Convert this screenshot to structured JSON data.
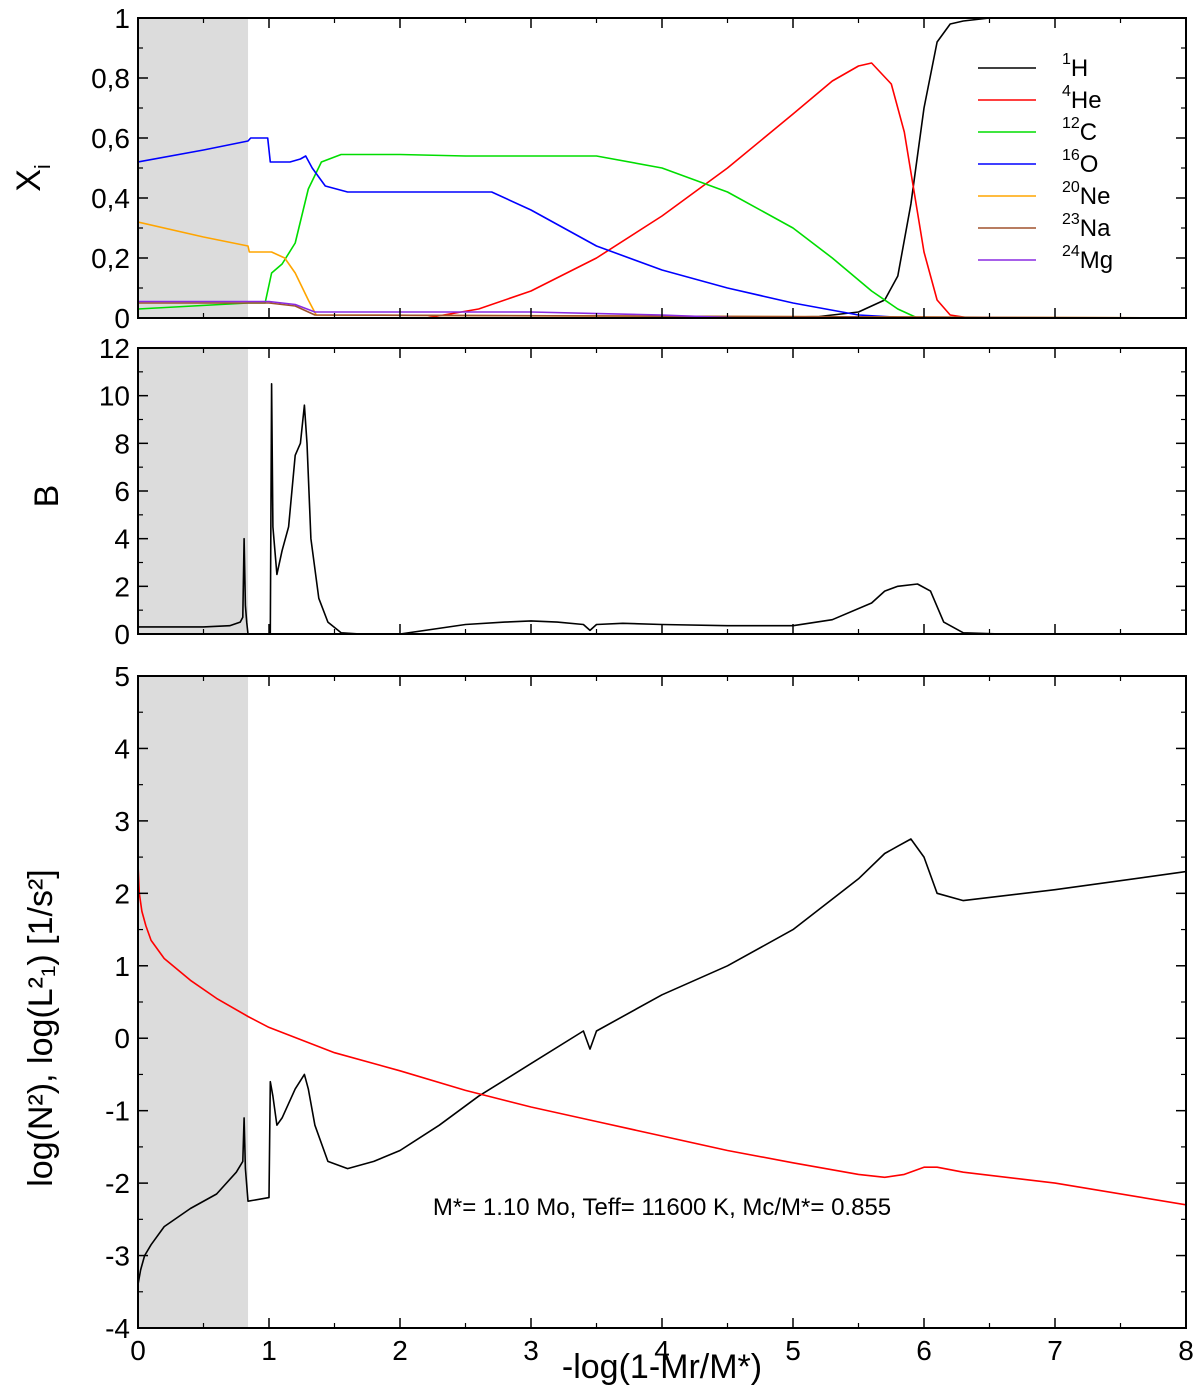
{
  "chart_data": [
    {
      "type": "line",
      "panel": "abundances",
      "ylabel": "X",
      "ylabel_sub": "i",
      "xlim": [
        0,
        8
      ],
      "ylim": [
        0,
        1
      ],
      "yticks": [
        {
          "value": 0,
          "label": "0"
        },
        {
          "value": 0.2,
          "label": "0,2"
        },
        {
          "value": 0.4,
          "label": "0,4"
        },
        {
          "value": 0.6,
          "label": "0,6"
        },
        {
          "value": 0.8,
          "label": "0,8"
        },
        {
          "value": 1,
          "label": "1"
        }
      ],
      "shaded_region": [
        0,
        0.84
      ],
      "legend_position": "top-right",
      "series": [
        {
          "name": "1H",
          "sup": "1",
          "label": "H",
          "color": "#000000",
          "x": [
            0,
            4.6,
            5.2,
            5.5,
            5.7,
            5.8,
            5.9,
            6.0,
            6.1,
            6.2,
            6.3,
            6.5,
            8
          ],
          "y": [
            0,
            0,
            0.005,
            0.02,
            0.06,
            0.14,
            0.38,
            0.7,
            0.92,
            0.98,
            0.99,
            1.0,
            1.0
          ]
        },
        {
          "name": "4He",
          "sup": "4",
          "label": "He",
          "color": "#ff0000",
          "x": [
            0,
            2.2,
            2.6,
            3.0,
            3.5,
            4.0,
            4.5,
            5.0,
            5.3,
            5.5,
            5.6,
            5.75,
            5.85,
            6.0,
            6.1,
            6.2,
            6.35,
            8
          ],
          "y": [
            0,
            0,
            0.03,
            0.09,
            0.2,
            0.34,
            0.5,
            0.68,
            0.79,
            0.84,
            0.85,
            0.78,
            0.62,
            0.22,
            0.06,
            0.01,
            0,
            0
          ]
        },
        {
          "name": "12C",
          "sup": "12",
          "label": "C",
          "color": "#00dd00",
          "x": [
            0,
            0.84,
            0.97,
            1.02,
            1.1,
            1.2,
            1.3,
            1.4,
            1.55,
            2.0,
            2.5,
            3.0,
            3.5,
            4.0,
            4.5,
            5.0,
            5.3,
            5.6,
            5.8,
            5.95,
            8
          ],
          "y": [
            0.03,
            0.05,
            0.05,
            0.15,
            0.18,
            0.25,
            0.43,
            0.52,
            0.545,
            0.545,
            0.54,
            0.54,
            0.54,
            0.5,
            0.42,
            0.3,
            0.2,
            0.09,
            0.03,
            0,
            0
          ]
        },
        {
          "name": "16O",
          "sup": "16",
          "label": "O",
          "color": "#0000ff",
          "x": [
            0,
            0.5,
            0.84,
            0.86,
            0.99,
            1.01,
            1.04,
            1.16,
            1.24,
            1.28,
            1.33,
            1.43,
            1.6,
            2.0,
            2.7,
            3.0,
            3.5,
            4.0,
            4.5,
            5.0,
            5.5,
            5.9,
            8
          ],
          "y": [
            0.52,
            0.56,
            0.59,
            0.6,
            0.6,
            0.52,
            0.52,
            0.52,
            0.53,
            0.54,
            0.5,
            0.44,
            0.42,
            0.42,
            0.42,
            0.36,
            0.24,
            0.16,
            0.1,
            0.05,
            0.01,
            0,
            0
          ]
        },
        {
          "name": "20Ne",
          "sup": "20",
          "label": "Ne",
          "color": "#ffa500",
          "x": [
            0,
            0.5,
            0.84,
            0.85,
            1.02,
            1.12,
            1.2,
            1.3,
            1.36,
            8
          ],
          "y": [
            0.32,
            0.27,
            0.24,
            0.22,
            0.22,
            0.2,
            0.15,
            0.06,
            0.01,
            0
          ]
        },
        {
          "name": "23Na",
          "sup": "23",
          "label": "Na",
          "color": "#a0522d",
          "x": [
            0,
            0.84,
            1.0,
            1.2,
            1.35,
            8
          ],
          "y": [
            0.05,
            0.05,
            0.05,
            0.04,
            0.01,
            0
          ]
        },
        {
          "name": "24Mg",
          "sup": "24",
          "label": "Mg",
          "color": "#8a2be2",
          "x": [
            0,
            0.84,
            1.0,
            1.2,
            1.35,
            2.0,
            3.0,
            4.0,
            4.6,
            8
          ],
          "y": [
            0.055,
            0.055,
            0.055,
            0.045,
            0.02,
            0.02,
            0.02,
            0.01,
            0,
            0
          ]
        }
      ]
    },
    {
      "type": "line",
      "panel": "ledoux",
      "ylabel": "B",
      "xlim": [
        0,
        8
      ],
      "ylim": [
        0,
        12
      ],
      "yticks": [
        {
          "value": 0,
          "label": "0"
        },
        {
          "value": 2,
          "label": "2"
        },
        {
          "value": 4,
          "label": "4"
        },
        {
          "value": 6,
          "label": "6"
        },
        {
          "value": 8,
          "label": "8"
        },
        {
          "value": 10,
          "label": "10"
        },
        {
          "value": 12,
          "label": "12"
        }
      ],
      "shaded_region": [
        0,
        0.84
      ],
      "series": [
        {
          "name": "B",
          "color": "#000000",
          "x": [
            0,
            0.1,
            0.3,
            0.5,
            0.7,
            0.78,
            0.8,
            0.81,
            0.82,
            0.83,
            0.84,
            0.86,
            1.01,
            1.02,
            1.03,
            1.06,
            1.1,
            1.15,
            1.2,
            1.24,
            1.27,
            1.29,
            1.32,
            1.38,
            1.45,
            1.55,
            1.7,
            2.0,
            2.5,
            2.8,
            3.0,
            3.2,
            3.4,
            3.45,
            3.5,
            3.7,
            4.0,
            4.5,
            5.0,
            5.3,
            5.6,
            5.7,
            5.8,
            5.95,
            6.05,
            6.15,
            6.3,
            6.6,
            8
          ],
          "y": [
            0.3,
            0.3,
            0.3,
            0.3,
            0.35,
            0.5,
            0.7,
            4.0,
            1.2,
            0.5,
            0.0,
            0.0,
            0.0,
            10.5,
            4.5,
            2.5,
            3.5,
            4.5,
            7.5,
            8.0,
            9.6,
            8.0,
            4.0,
            1.5,
            0.5,
            0.05,
            0.0,
            0.0,
            0.4,
            0.5,
            0.55,
            0.5,
            0.4,
            0.15,
            0.4,
            0.45,
            0.4,
            0.35,
            0.35,
            0.6,
            1.3,
            1.8,
            2.0,
            2.1,
            1.8,
            0.5,
            0.05,
            0.0,
            0.0
          ]
        }
      ]
    },
    {
      "type": "line",
      "panel": "frequencies",
      "ylabel": "log(N²), log(L²₁) [1/s²]",
      "xlabel": "-log(1-Mr/M*)",
      "xlim": [
        0,
        8
      ],
      "ylim": [
        -4,
        5
      ],
      "xticks": [
        {
          "value": 0,
          "label": "0"
        },
        {
          "value": 1,
          "label": "1"
        },
        {
          "value": 2,
          "label": "2"
        },
        {
          "value": 3,
          "label": "3"
        },
        {
          "value": 4,
          "label": "4"
        },
        {
          "value": 5,
          "label": "5"
        },
        {
          "value": 6,
          "label": "6"
        },
        {
          "value": 7,
          "label": "7"
        },
        {
          "value": 8,
          "label": "8"
        }
      ],
      "yticks": [
        {
          "value": -4,
          "label": "-4"
        },
        {
          "value": -3,
          "label": "-3"
        },
        {
          "value": -2,
          "label": "-2"
        },
        {
          "value": -1,
          "label": "-1"
        },
        {
          "value": 0,
          "label": "0"
        },
        {
          "value": 1,
          "label": "1"
        },
        {
          "value": 2,
          "label": "2"
        },
        {
          "value": 3,
          "label": "3"
        },
        {
          "value": 4,
          "label": "4"
        },
        {
          "value": 5,
          "label": "5"
        }
      ],
      "shaded_region": [
        0,
        0.84
      ],
      "annotation": "M*= 1.10 Mo, Teff= 11600 K, Mc/M*=  0.855",
      "series": [
        {
          "name": "log(N²)",
          "color": "#000000",
          "x": [
            0,
            0.02,
            0.05,
            0.1,
            0.2,
            0.4,
            0.6,
            0.75,
            0.8,
            0.81,
            0.82,
            0.84,
            1.0,
            1.01,
            1.03,
            1.06,
            1.1,
            1.2,
            1.27,
            1.3,
            1.35,
            1.45,
            1.6,
            1.8,
            2.0,
            2.3,
            2.6,
            3.0,
            3.4,
            3.45,
            3.5,
            4.0,
            4.5,
            5.0,
            5.5,
            5.7,
            5.8,
            5.9,
            6.0,
            6.1,
            6.3,
            7.0,
            8.0
          ],
          "y": [
            -3.4,
            -3.2,
            -3.0,
            -2.85,
            -2.6,
            -2.35,
            -2.15,
            -1.85,
            -1.7,
            -1.1,
            -1.8,
            -2.25,
            -2.2,
            -0.6,
            -0.8,
            -1.2,
            -1.1,
            -0.7,
            -0.5,
            -0.7,
            -1.2,
            -1.7,
            -1.8,
            -1.7,
            -1.55,
            -1.2,
            -0.8,
            -0.35,
            0.1,
            -0.15,
            0.1,
            0.6,
            1.0,
            1.5,
            2.2,
            2.55,
            2.65,
            2.75,
            2.5,
            2.0,
            1.9,
            2.05,
            2.3
          ]
        },
        {
          "name": "log(L²₁)",
          "color": "#ff0000",
          "x": [
            0,
            0.01,
            0.03,
            0.06,
            0.1,
            0.2,
            0.4,
            0.6,
            0.84,
            1.0,
            1.5,
            2.0,
            2.5,
            3.0,
            3.5,
            4.0,
            4.5,
            5.0,
            5.5,
            5.7,
            5.85,
            6.0,
            6.1,
            6.3,
            7.0,
            8.0
          ],
          "y": [
            2.4,
            2.0,
            1.75,
            1.55,
            1.35,
            1.1,
            0.8,
            0.55,
            0.3,
            0.15,
            -0.2,
            -0.45,
            -0.72,
            -0.95,
            -1.15,
            -1.35,
            -1.55,
            -1.72,
            -1.88,
            -1.92,
            -1.88,
            -1.78,
            -1.78,
            -1.85,
            -2.0,
            -2.3
          ]
        }
      ]
    }
  ]
}
